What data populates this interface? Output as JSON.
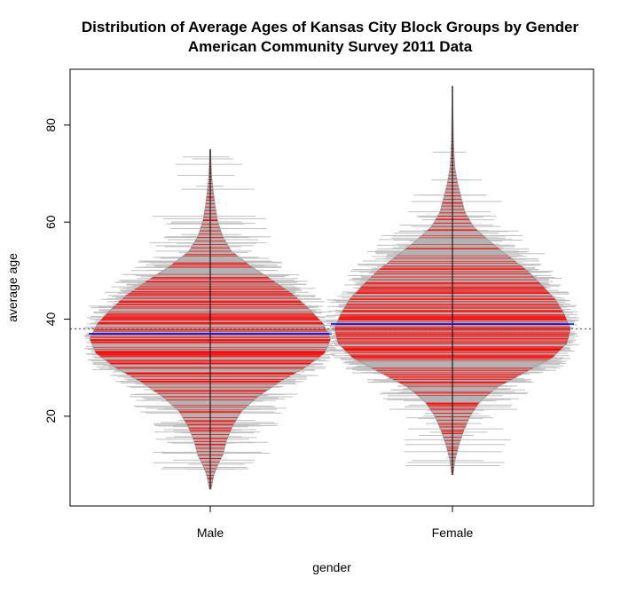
{
  "chart_data": {
    "type": "beanplot",
    "title": "Distribution of Average Ages of Kansas City Block Groups by Gender",
    "subtitle": "American Community Survey 2011 Data",
    "xlabel": "gender",
    "ylabel": "average age",
    "categories": [
      "Male",
      "Female"
    ],
    "yticks": [
      20,
      40,
      60,
      80
    ],
    "ylim": [
      1.5,
      91.5
    ],
    "overall_mean": 38.0,
    "colors": {
      "bean_fill": "#b3b3b3",
      "bean_lines": "#ff0000",
      "density_outline": "#a0a0a0",
      "jitter_lines": "#c0c0c0",
      "mean_line": "#0000ff",
      "overall_mean_line": "#606060",
      "axis": "#000000"
    },
    "series": [
      {
        "name": "Male",
        "mean": 37.0,
        "min": 5.0,
        "max": 75.0,
        "density": [
          [
            5,
            0.005
          ],
          [
            8,
            0.03
          ],
          [
            10,
            0.06
          ],
          [
            12,
            0.1
          ],
          [
            15,
            0.13
          ],
          [
            18,
            0.18
          ],
          [
            21,
            0.25
          ],
          [
            24,
            0.38
          ],
          [
            27,
            0.55
          ],
          [
            30,
            0.76
          ],
          [
            33,
            0.92
          ],
          [
            36,
            0.97
          ],
          [
            39,
            0.91
          ],
          [
            42,
            0.8
          ],
          [
            45,
            0.67
          ],
          [
            48,
            0.5
          ],
          [
            51,
            0.32
          ],
          [
            54,
            0.17
          ],
          [
            57,
            0.1
          ],
          [
            60,
            0.06
          ],
          [
            63,
            0.04
          ],
          [
            66,
            0.025
          ],
          [
            69,
            0.012
          ],
          [
            72,
            0.006
          ],
          [
            75,
            0.003
          ]
        ]
      },
      {
        "name": "Female",
        "mean": 39.0,
        "min": 8.0,
        "max": 88.0,
        "density": [
          [
            8,
            0.005
          ],
          [
            11,
            0.02
          ],
          [
            14,
            0.05
          ],
          [
            17,
            0.09
          ],
          [
            20,
            0.14
          ],
          [
            23,
            0.22
          ],
          [
            26,
            0.36
          ],
          [
            29,
            0.58
          ],
          [
            32,
            0.8
          ],
          [
            35,
            0.92
          ],
          [
            38,
            0.95
          ],
          [
            41,
            0.9
          ],
          [
            44,
            0.83
          ],
          [
            47,
            0.72
          ],
          [
            50,
            0.6
          ],
          [
            53,
            0.45
          ],
          [
            56,
            0.3
          ],
          [
            59,
            0.17
          ],
          [
            62,
            0.1
          ],
          [
            65,
            0.07
          ],
          [
            68,
            0.04
          ],
          [
            71,
            0.02
          ],
          [
            74,
            0.012
          ],
          [
            77,
            0.007
          ],
          [
            80,
            0.005
          ],
          [
            84,
            0.003
          ],
          [
            88,
            0.002
          ]
        ]
      }
    ]
  }
}
